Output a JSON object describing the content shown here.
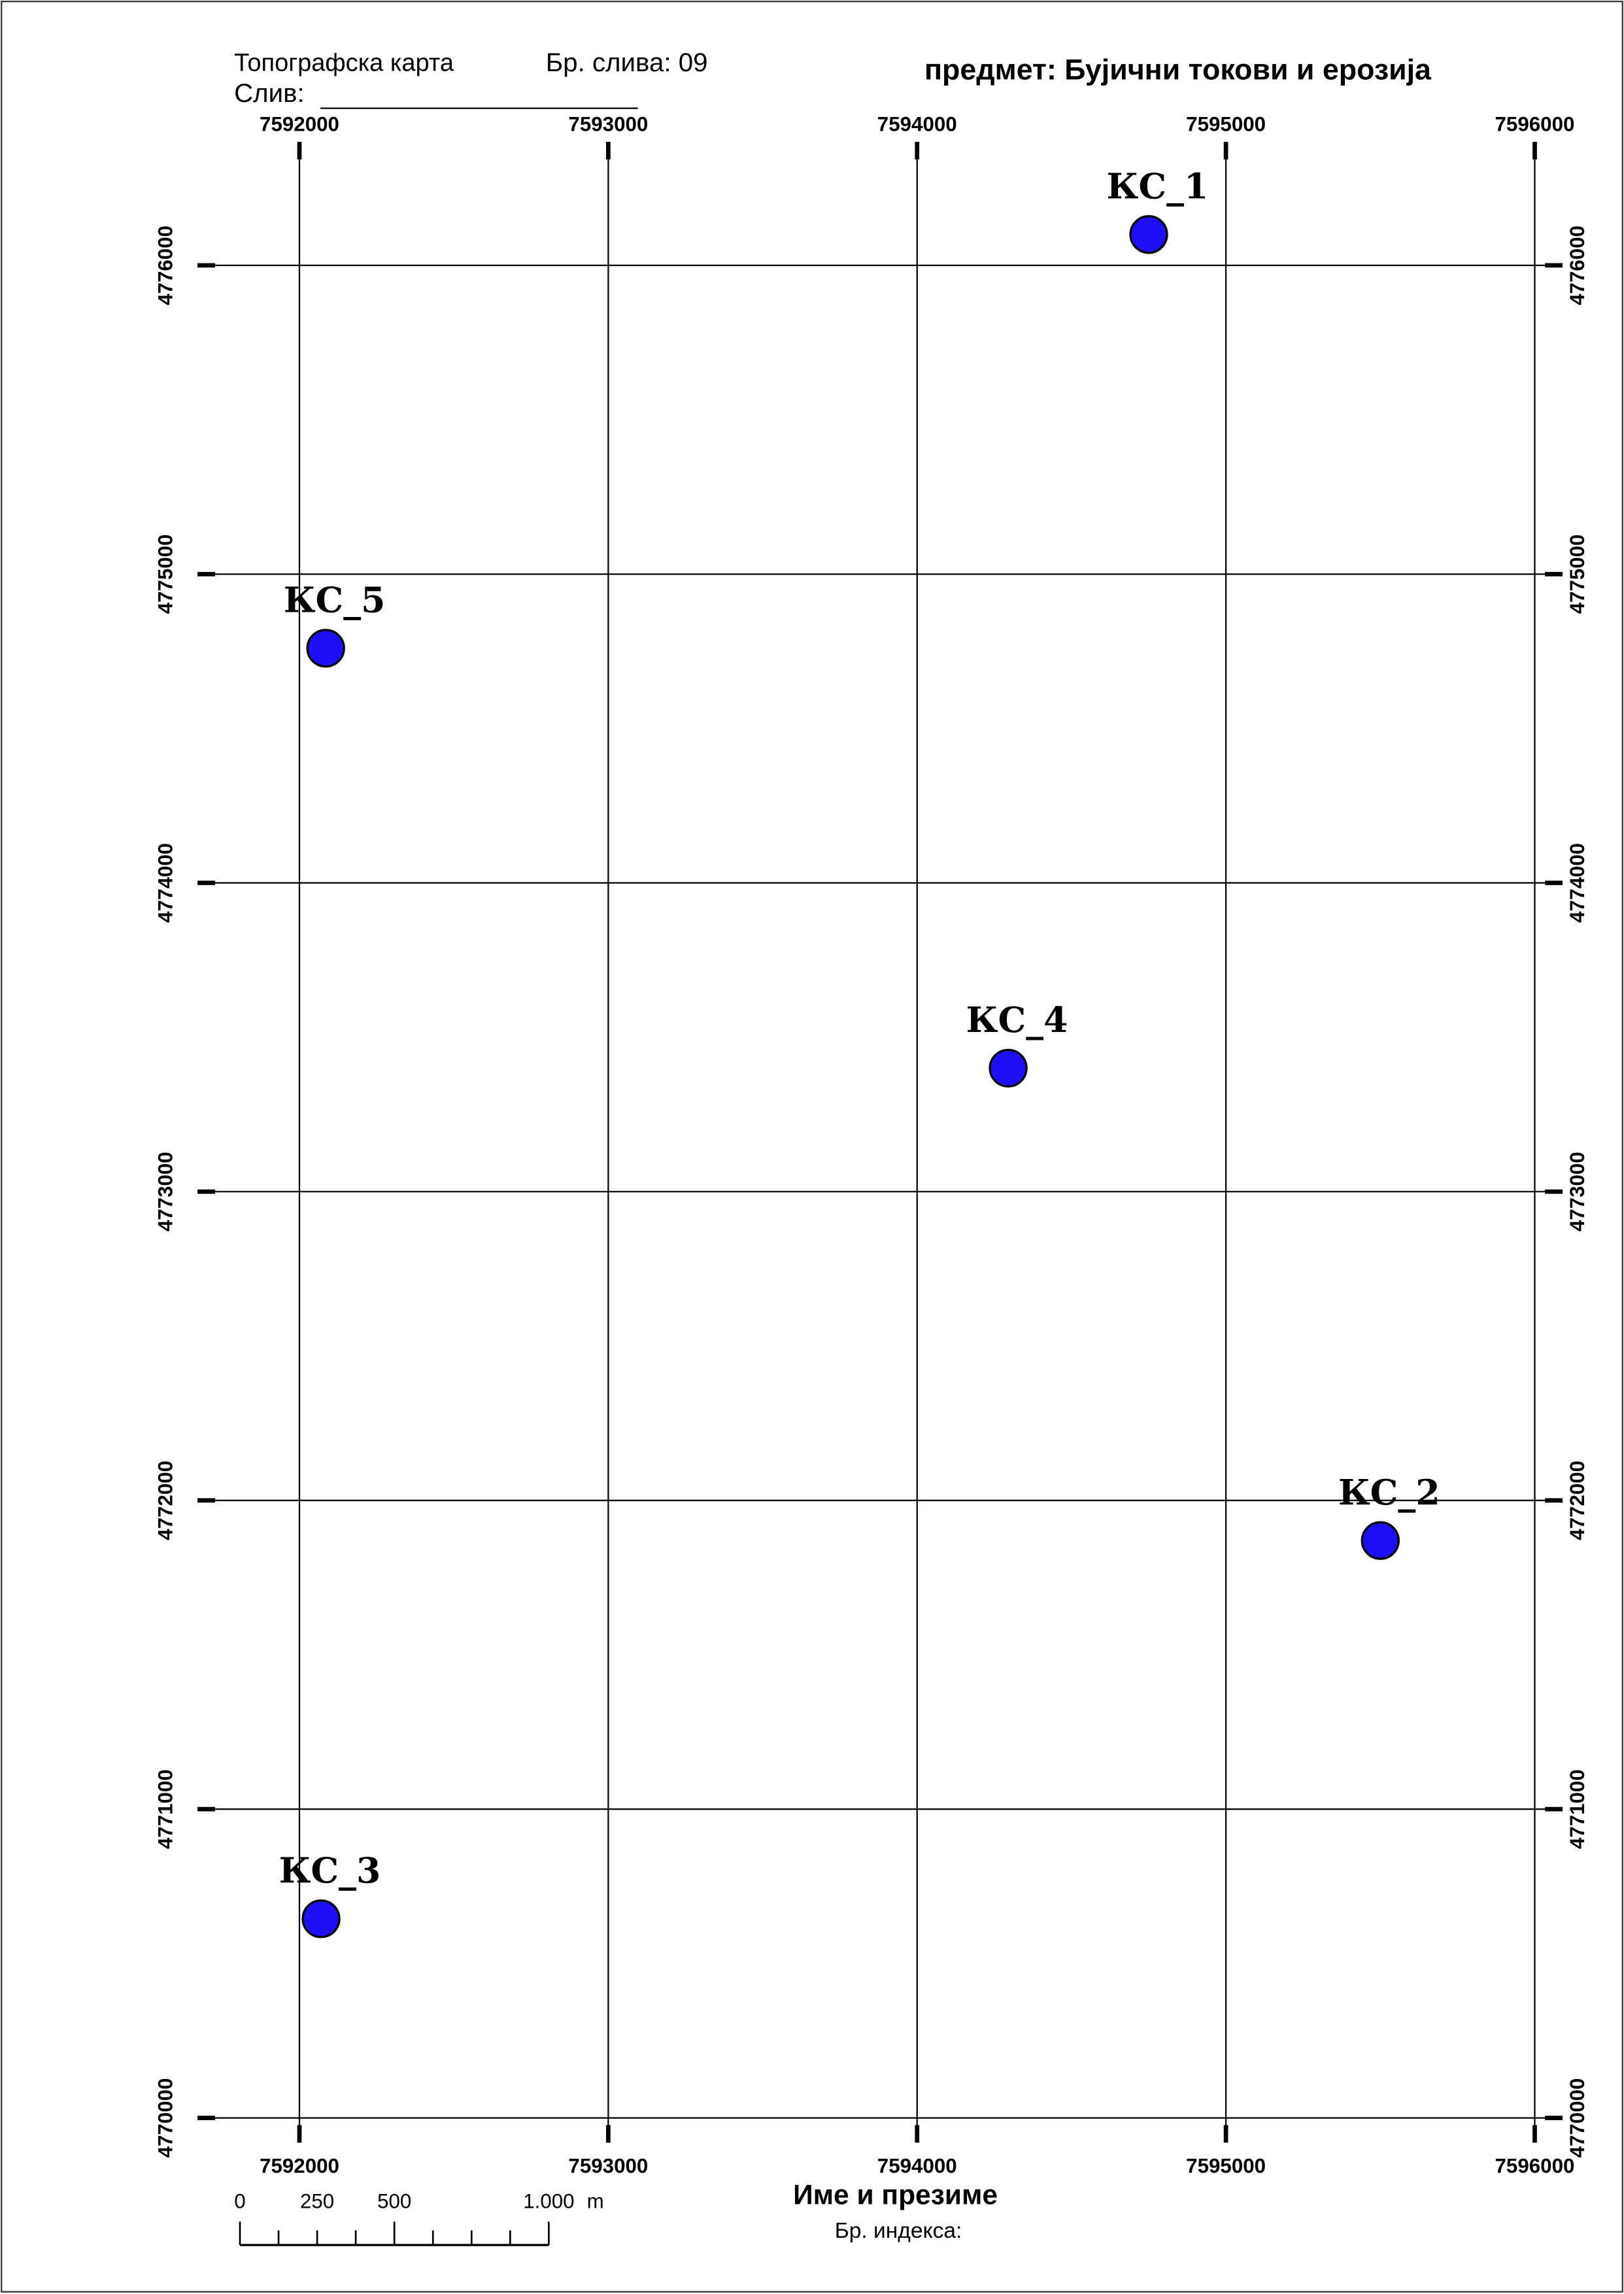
{
  "header": {
    "map_type": "Топографска карта",
    "sheet_number": "Бр. слива: 09",
    "basin": "Слив:",
    "title": "предмет: Бујични токови и ерозија"
  },
  "map": {
    "xlim": [
      7591670,
      7596090
    ],
    "ylim": [
      4769920,
      4776400
    ],
    "xticks": [
      7592000,
      7593000,
      7594000,
      7595000,
      7596000
    ],
    "yticks": [
      4770000,
      4771000,
      4772000,
      4773000,
      4774000,
      4775000,
      4776000
    ],
    "point_color": "#1e10f5",
    "points": [
      {
        "label": "КС_1",
        "x": 7594750,
        "y": 4776100
      },
      {
        "label": "КС_2",
        "x": 7595500,
        "y": 4771870
      },
      {
        "label": "КС_3",
        "x": 7592070,
        "y": 4770645
      },
      {
        "label": "КС_4",
        "x": 7594295,
        "y": 4773400
      },
      {
        "label": "КС_5",
        "x": 7592085,
        "y": 4774760
      }
    ]
  },
  "scale_bar": {
    "ticks": [
      0,
      250,
      500,
      {
        "value": 1000,
        "label": "1.000"
      }
    ],
    "unit": "m"
  },
  "footer": {
    "name": "Име и презиме",
    "index": "Бр. индекса:"
  }
}
